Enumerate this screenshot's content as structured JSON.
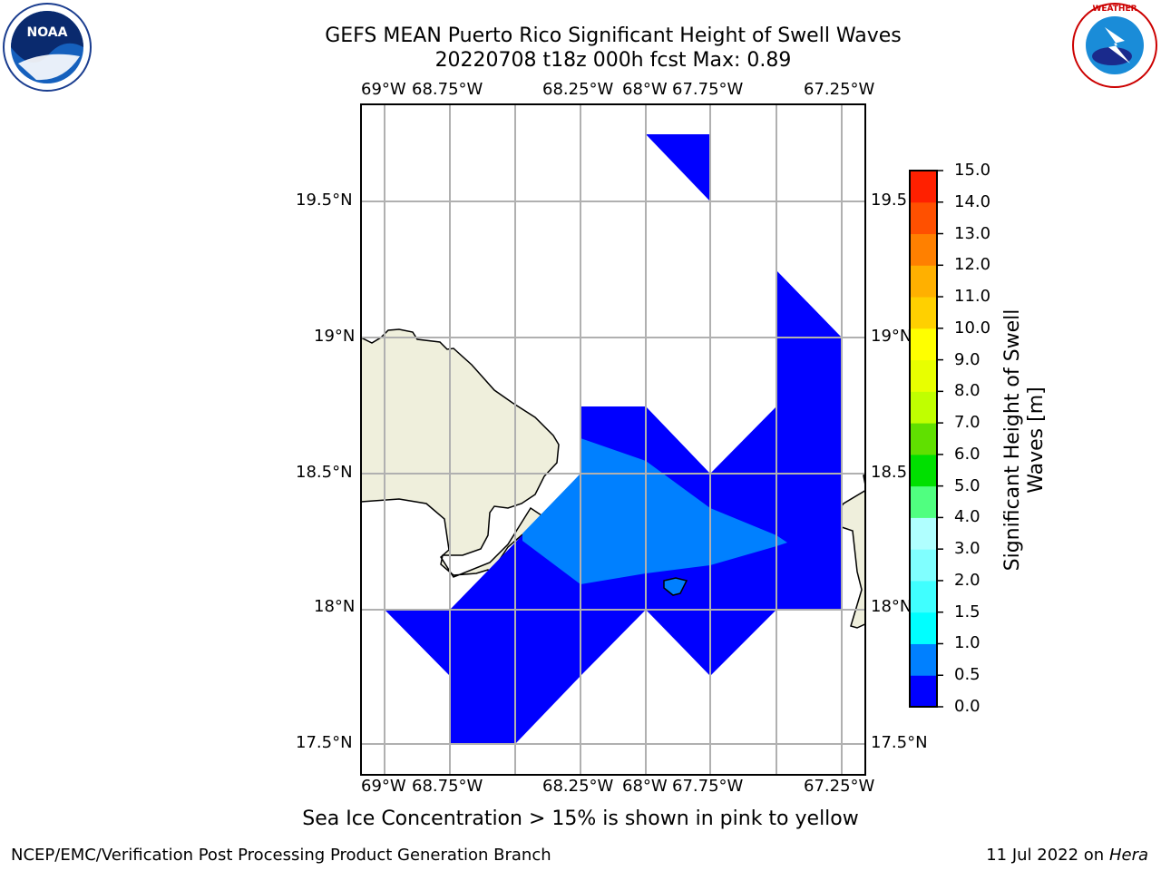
{
  "title_line1": "GEFS MEAN Puerto Rico Significant Height of Swell Waves",
  "title_line2": "20220708 t18z 000h fcst   Max: 0.89",
  "lon_labels": [
    "69°W",
    "68.75°W",
    "68.25°W",
    "68°W",
    "67.75°W",
    "67.25°W"
  ],
  "lat_labels_left": [
    "19.5°N",
    "19°N",
    "18.5°N",
    "18°N",
    "17.5°N"
  ],
  "lat_labels_right": [
    "19.5",
    "19°N",
    "18.5",
    "18°N",
    "17.5°N"
  ],
  "colorbar": {
    "label": "Significant Height of Swell Waves [m]",
    "ticks": [
      "0.0",
      "0.5",
      "1.0",
      "1.5",
      "2.0",
      "3.0",
      "4.0",
      "5.0",
      "6.0",
      "7.0",
      "8.0",
      "9.0",
      "10.0",
      "11.0",
      "12.0",
      "13.0",
      "14.0",
      "15.0"
    ],
    "colors": [
      "#0000ff",
      "#0080ff",
      "#00ffff",
      "#40ffff",
      "#80ffff",
      "#b0ffff",
      "#50ff80",
      "#00e000",
      "#60e000",
      "#c0ff00",
      "#e8ff00",
      "#ffff00",
      "#ffd000",
      "#ffb000",
      "#ff8000",
      "#ff5000",
      "#ff2000"
    ]
  },
  "sea_ice_note": "Sea Ice Concentration > 15% is shown in pink to yellow",
  "footer_left": "NCEP/EMC/Verification Post Processing Product Generation Branch",
  "footer_date": "11 Jul 2022 on ",
  "footer_host": "Hera",
  "logo_left": "NOAA",
  "logo_right": "NATIONAL WEATHER SERVICE",
  "colors": {
    "land": "#efefdc",
    "swell_low": "#0000ff",
    "swell_mid": "#0080ff",
    "grid": "#b0b0b0"
  }
}
